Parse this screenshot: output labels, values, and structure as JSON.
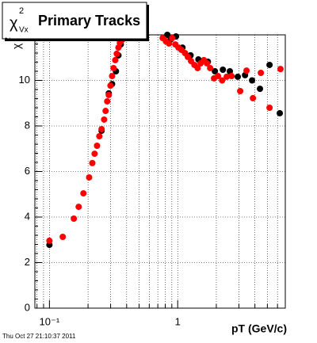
{
  "chart_data": {
    "type": "scatter",
    "title": "Primary Tracks",
    "title_symbol": "χ",
    "title_superscript": "2",
    "title_subscript": "Vx",
    "y_label": "χ",
    "y_label_superscript": "2",
    "x_label": "pT (GeV/c)",
    "timestamp": "Thu Oct 27 21:10:37 2011",
    "log_x": true,
    "grid": true,
    "xlim": [
      0.077,
      6.9
    ],
    "ylim": [
      0,
      12
    ],
    "xticks": [
      {
        "value": 0.1,
        "label": "10⁻¹"
      },
      1
    ],
    "xminor_ticks": [
      0.08,
      0.09,
      0.2,
      0.3,
      0.4,
      0.5,
      0.6,
      0.7,
      0.8,
      0.9,
      2,
      3,
      4,
      5,
      6
    ],
    "yticks": [
      0,
      2,
      4,
      6,
      8,
      10
    ],
    "series": [
      {
        "color": "#000000",
        "x": [
          0.1,
          0.255,
          0.29,
          0.308,
          0.33,
          0.345,
          0.36,
          0.83,
          0.88,
          0.97,
          1.09,
          1.26,
          1.45,
          1.72,
          1.95,
          2.25,
          2.55,
          2.94,
          3.35,
          3.8,
          4.38,
          5.2,
          6.25
        ],
        "values": [
          2.78,
          7.79,
          9.43,
          9.84,
          10.4,
          11.1,
          11.58,
          12.0,
          11.79,
          11.93,
          11.44,
          11.1,
          10.92,
          10.82,
          10.4,
          10.47,
          10.4,
          10.16,
          10.23,
          10.0,
          9.63,
          10.68,
          8.56
        ]
      },
      {
        "color": "#ff0000",
        "x": [
          0.1,
          0.127,
          0.155,
          0.169,
          0.184,
          0.204,
          0.216,
          0.225,
          0.235,
          0.245,
          0.255,
          0.267,
          0.274,
          0.282,
          0.29,
          0.299,
          0.308,
          0.316,
          0.326,
          0.335,
          0.345,
          0.354,
          0.37,
          0.763,
          0.808,
          0.855,
          0.905,
          0.958,
          1.014,
          1.07,
          1.14,
          1.2,
          1.27,
          1.35,
          1.43,
          1.51,
          1.6,
          1.69,
          1.79,
          1.92,
          2.06,
          2.22,
          2.41,
          2.63,
          3.07,
          3.44,
          3.86,
          4.45,
          5.2,
          6.33
        ],
        "values": [
          2.96,
          3.13,
          3.93,
          4.45,
          5.04,
          5.74,
          6.37,
          6.78,
          7.13,
          7.55,
          7.86,
          8.28,
          8.66,
          9.08,
          9.36,
          9.77,
          10.19,
          10.54,
          10.89,
          11.17,
          11.44,
          11.65,
          11.79,
          11.86,
          11.72,
          11.62,
          11.86,
          11.58,
          11.44,
          11.34,
          11.2,
          11.03,
          10.85,
          10.68,
          10.54,
          10.75,
          10.89,
          10.75,
          10.54,
          10.09,
          10.19,
          10.0,
          10.16,
          10.19,
          9.53,
          10.43,
          9.22,
          10.33,
          8.8,
          10.5
        ]
      }
    ]
  }
}
